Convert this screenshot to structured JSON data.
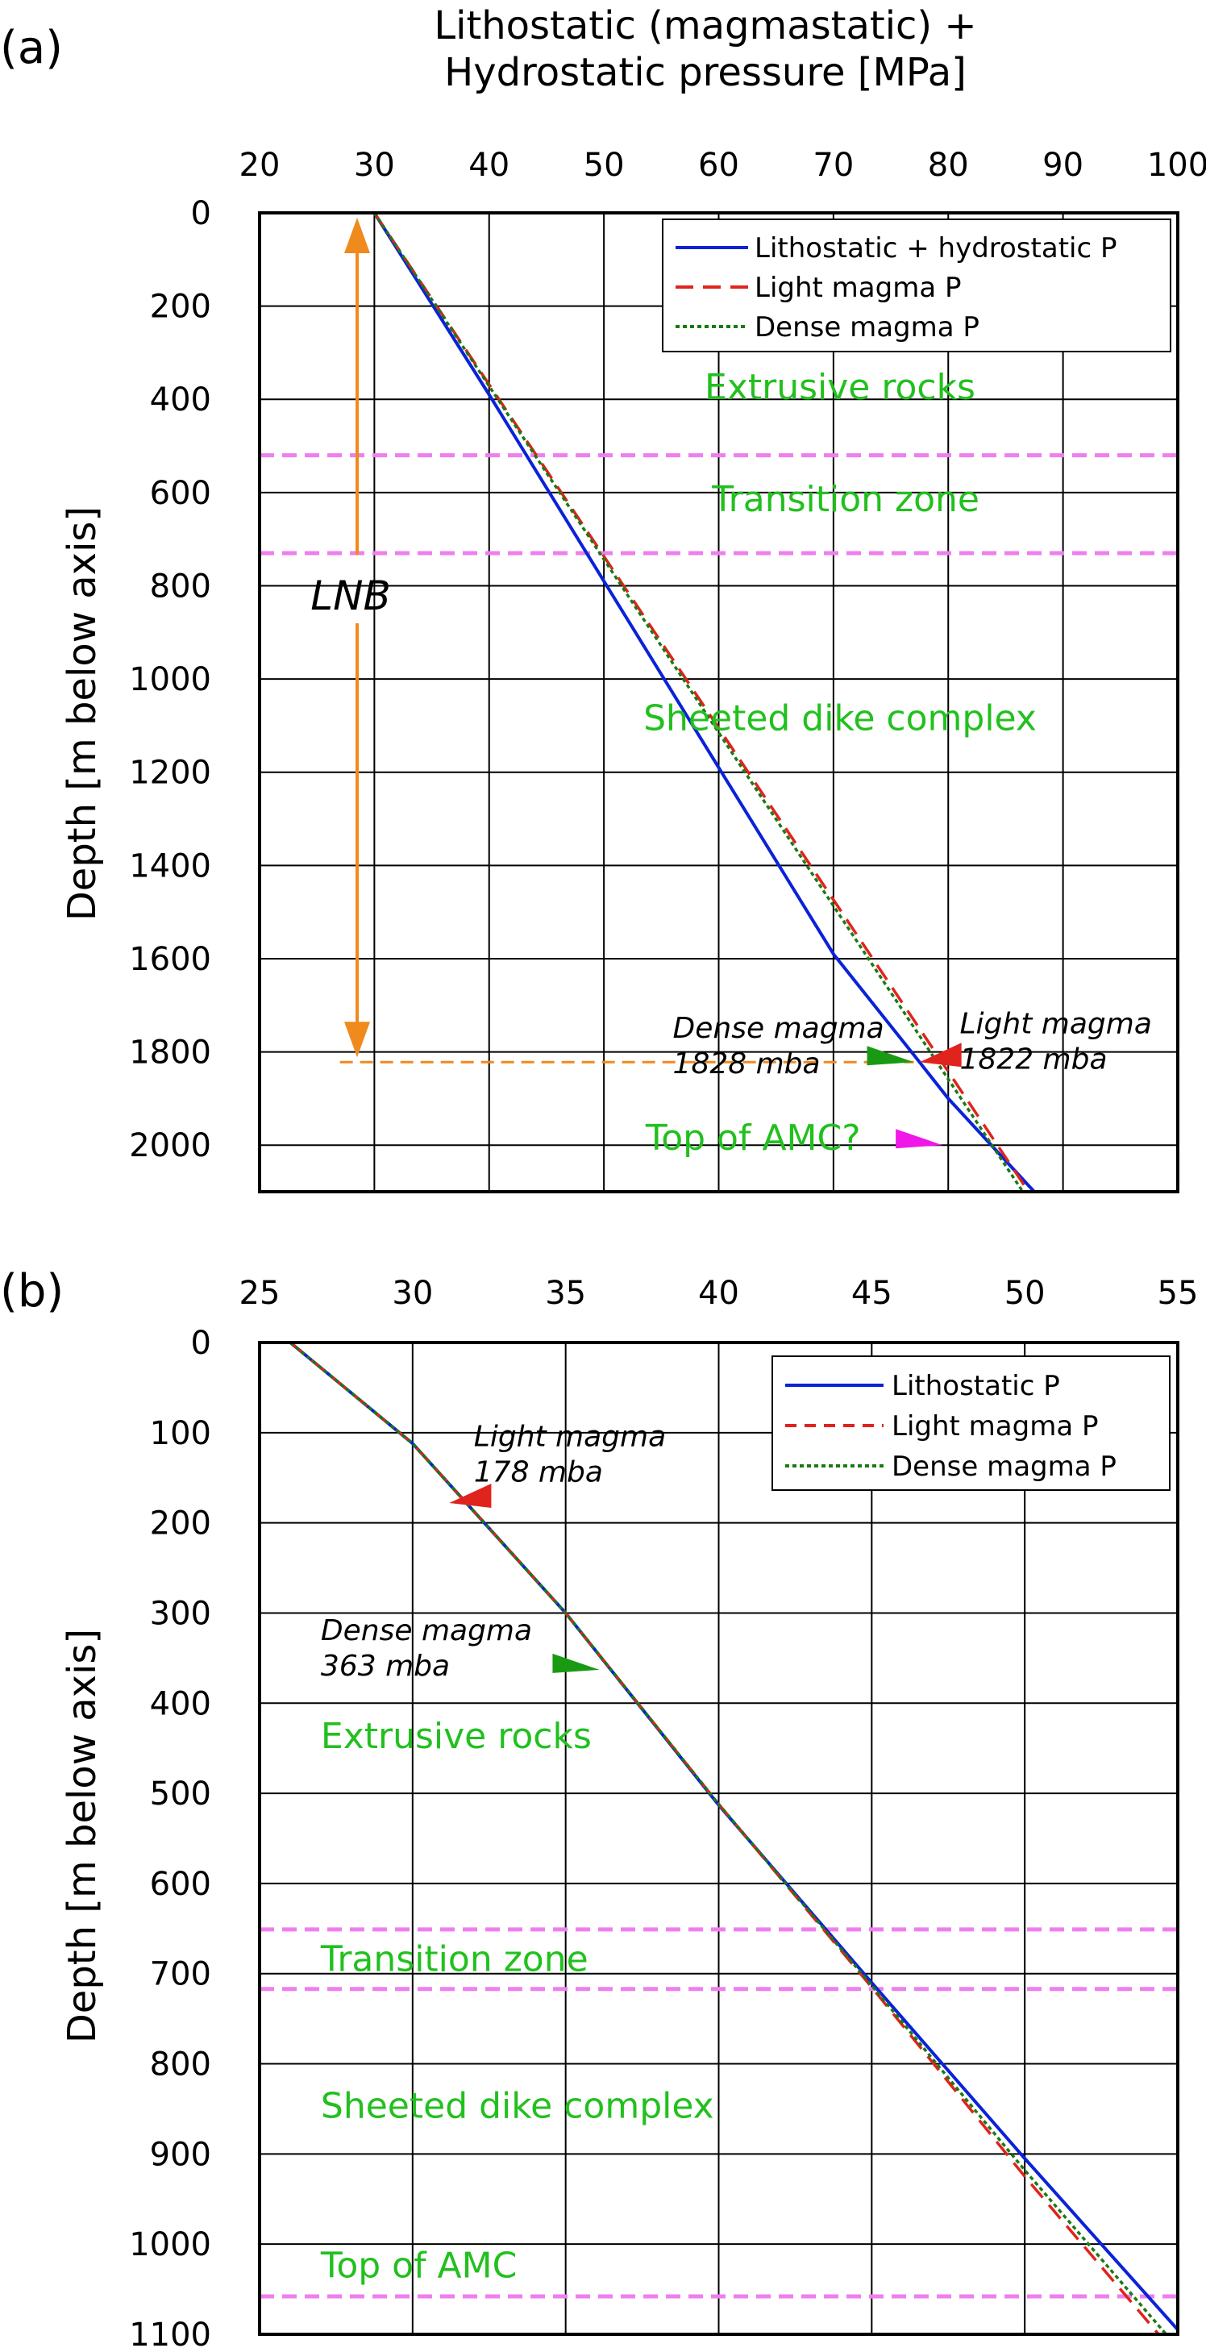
{
  "chart_data": [
    {
      "panel_label": "(a)",
      "type": "line",
      "title": "",
      "xlabel": "Lithostatic (magmastatic) + Hydrostatic pressure [MPa]",
      "ylabel": "Depth [m below axis]",
      "xlim": [
        20,
        100
      ],
      "ylim": [
        0,
        2100
      ],
      "y_inverted": true,
      "x_axis_position": "top",
      "xticks": [
        20,
        30,
        40,
        50,
        60,
        70,
        80,
        90,
        100
      ],
      "yticks": [
        0,
        200,
        400,
        600,
        800,
        1000,
        1200,
        1400,
        1600,
        1800,
        2000
      ],
      "grid": true,
      "legend_position": "top-right",
      "series": [
        {
          "name": "Lithostatic + hydrostatic P",
          "color": "#0a22d8",
          "dash": "solid",
          "points": [
            [
              30,
              0
            ],
            [
              40,
              390
            ],
            [
              50,
              790
            ],
            [
              60,
              1190
            ],
            [
              70,
              1590
            ],
            [
              77.5,
              1822
            ],
            [
              80,
              1900
            ],
            [
              87.5,
              2100
            ]
          ]
        },
        {
          "name": "Light magma P",
          "color": "#e0231c",
          "dash": "dashed",
          "points": [
            [
              30,
              0
            ],
            [
              87,
              2100
            ]
          ]
        },
        {
          "name": "Dense magma P",
          "color": "#1a7a12",
          "dash": "dotted",
          "points": [
            [
              30,
              0
            ],
            [
              86.5,
              2100
            ]
          ]
        }
      ],
      "bands": [
        {
          "y": 520,
          "color": "#ee7fee"
        },
        {
          "y": 730,
          "color": "#ee7fee"
        }
      ],
      "zone_labels": [
        {
          "text": "Extrusive rocks",
          "x": 79,
          "y": 400
        },
        {
          "text": "Transition zone",
          "x": 79.5,
          "y": 640
        },
        {
          "text": "Sheeted dike complex",
          "x": 79,
          "y": 1110
        },
        {
          "text": "Top of AMC?",
          "x": 63,
          "y": 2010
        }
      ],
      "lnb": {
        "label": "LNB",
        "x": 28.5,
        "y_top": 0,
        "y_bottom": 1822,
        "y_text": 820
      },
      "lnb_line_y": 1822,
      "lnb_line_x_from": 27,
      "markers": [
        {
          "color": "#e0231c",
          "x": 77.5,
          "y": 1822,
          "dir": "right"
        },
        {
          "color": "#1a9a12",
          "x": 77,
          "y": 1822,
          "dir": "left"
        },
        {
          "color": "#f018e8",
          "x": 79.5,
          "y": 2000,
          "dir": "left"
        }
      ],
      "annotations": [
        {
          "lines": [
            "Dense magma",
            "1828 mba"
          ],
          "x": 56,
          "y": 1770
        },
        {
          "lines": [
            "Light magma",
            "1822 mba"
          ],
          "x": 81,
          "y": 1760
        }
      ]
    },
    {
      "panel_label": "(b)",
      "type": "line",
      "title": "",
      "xlabel": "",
      "ylabel": "Depth [m below axis]",
      "xlim": [
        25,
        55
      ],
      "ylim": [
        0,
        1100
      ],
      "y_inverted": true,
      "x_axis_position": "top",
      "xticks": [
        25,
        30,
        35,
        40,
        45,
        50,
        55
      ],
      "yticks": [
        0,
        100,
        200,
        300,
        400,
        500,
        600,
        700,
        800,
        900,
        1000,
        1100
      ],
      "grid": true,
      "legend_position": "top-right",
      "series": [
        {
          "name": "Lithostatic P",
          "color": "#0a22d8",
          "dash": "solid",
          "points": [
            [
              26,
              0
            ],
            [
              30,
              112
            ],
            [
              35,
              300
            ],
            [
              40,
              513
            ],
            [
              45,
              710
            ],
            [
              50,
              905
            ],
            [
              55,
              1095
            ]
          ]
        },
        {
          "name": "Light magma P",
          "color": "#e0231c",
          "dash": "dashed",
          "points": [
            [
              26,
              0
            ],
            [
              30,
              112
            ],
            [
              35,
              300
            ],
            [
              40,
              512
            ],
            [
              45,
              715
            ],
            [
              50,
              925
            ],
            [
              55,
              1125
            ]
          ]
        },
        {
          "name": "Dense magma P",
          "color": "#1a7a12",
          "dash": "dotted",
          "points": [
            [
              26,
              0
            ],
            [
              30,
              112
            ],
            [
              35,
              300
            ],
            [
              40,
              512
            ],
            [
              45,
              713
            ],
            [
              50,
              918
            ],
            [
              55,
              1115
            ]
          ]
        }
      ],
      "bands": [
        {
          "y": 651,
          "color": "#ee7fee"
        },
        {
          "y": 717,
          "color": "#ee7fee"
        },
        {
          "y": 1058,
          "color": "#ee7fee"
        }
      ],
      "zone_labels": [
        {
          "text": "Extrusive rocks",
          "x": 27,
          "y": 450
        },
        {
          "text": "Transition zone",
          "x": 27,
          "y": 697
        },
        {
          "text": "Sheeted dike complex",
          "x": 27,
          "y": 860
        },
        {
          "text": "Top of AMC",
          "x": 27,
          "y": 1037
        }
      ],
      "markers": [
        {
          "color": "#e0231c",
          "x": 31.2,
          "y": 178,
          "dir": "right"
        },
        {
          "color": "#1a9a12",
          "x": 36.1,
          "y": 363,
          "dir": "left"
        }
      ],
      "annotations": [
        {
          "lines": [
            "Light magma",
            "178 mba"
          ],
          "x": 32,
          "y": 115
        },
        {
          "lines": [
            "Dense magma",
            "363 mba"
          ],
          "x": 27,
          "y": 330
        }
      ]
    }
  ]
}
